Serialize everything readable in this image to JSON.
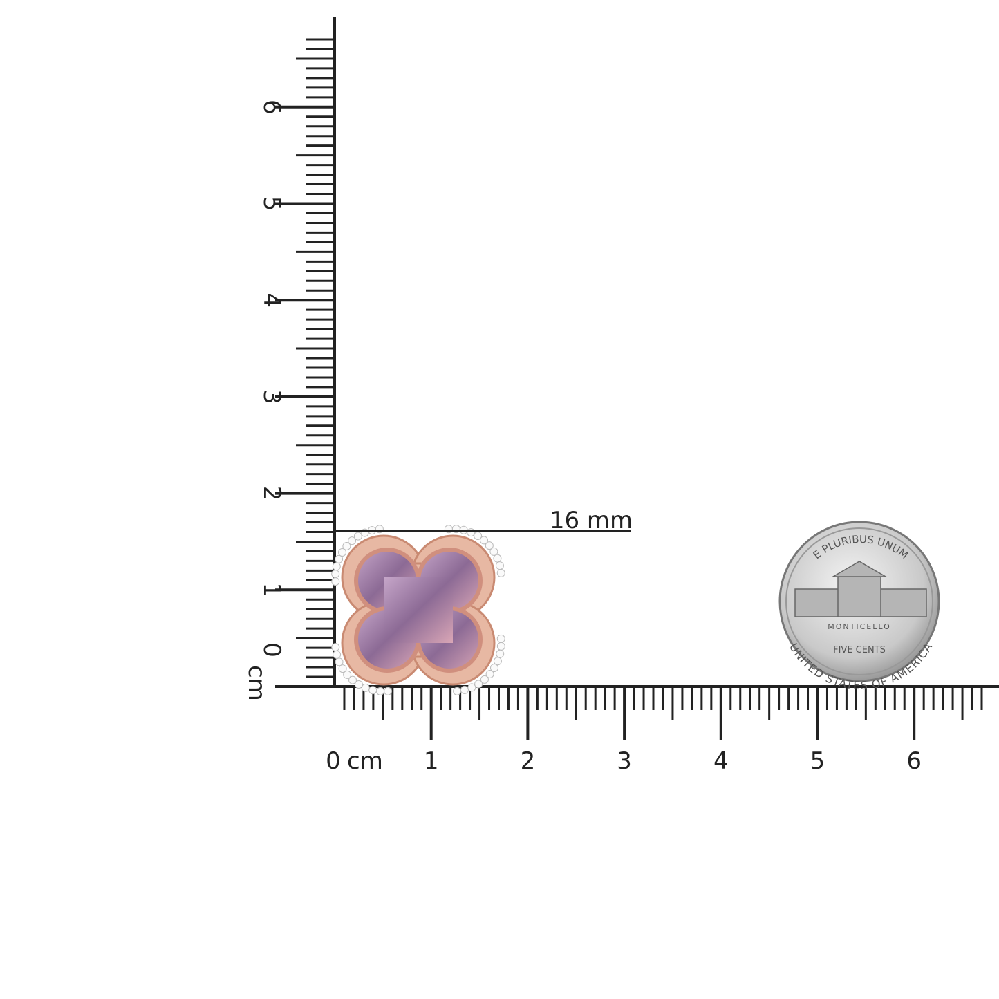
{
  "horizontal_ruler": {
    "labels": [
      "0",
      "1",
      "2",
      "3",
      "4",
      "5",
      "6"
    ],
    "unit": "cm"
  },
  "vertical_ruler": {
    "labels": [
      "0",
      "1",
      "2",
      "3",
      "4",
      "5",
      "6"
    ],
    "unit": "cm"
  },
  "measurement": {
    "label": "16 mm"
  },
  "coin": {
    "top_legend": "E PLURIBUS UNUM",
    "building": "MONTICELLO",
    "denomination": "FIVE CENTS",
    "bottom_legend": "UNITED STATES OF AMERICA"
  }
}
